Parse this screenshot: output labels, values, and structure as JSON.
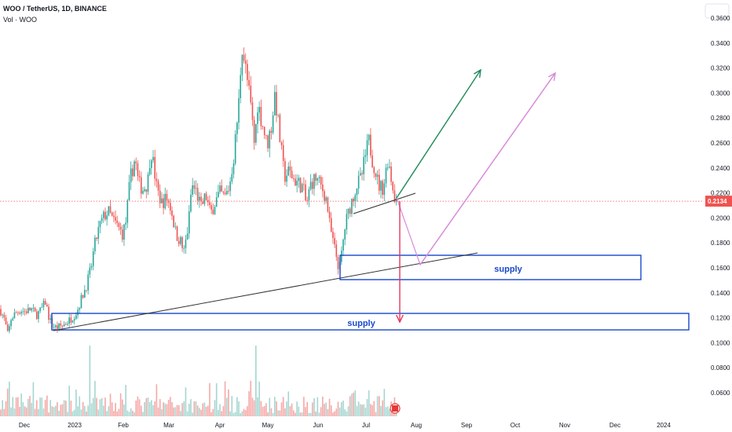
{
  "header": {
    "title": "WOO / TetherUS, 1D, BINANCE",
    "volume_label": "Vol · WOO"
  },
  "colors": {
    "up": "#26a69a",
    "down": "#ef5350",
    "vol_up": "#a5d6d0",
    "vol_down": "#f5a8a6",
    "price_line": "#ef5350",
    "box": "#1848cc",
    "green_arrow": "#1e8a5a",
    "violet_arrow": "#d88ad8",
    "red_arrow": "#e8355a",
    "trendline": "#333333"
  },
  "price_badge": "0.2134",
  "zones": [
    {
      "label": "supply"
    },
    {
      "label": "supply"
    }
  ],
  "chart_data": {
    "type": "candlestick",
    "title": "WOO / TetherUS, 1D, BINANCE",
    "y_ticks": [
      "0.3600",
      "0.3400",
      "0.3200",
      "0.3000",
      "0.2800",
      "0.2600",
      "0.2400",
      "0.2200",
      "0.2000",
      "0.1800",
      "0.1600",
      "0.1400",
      "0.1200",
      "0.1000",
      "0.0800",
      "0.0600"
    ],
    "x_ticks": [
      "Dec",
      "2023",
      "Feb",
      "Mar",
      "Apr",
      "May",
      "Jun",
      "Jul",
      "Aug",
      "Sep",
      "Oct",
      "Nov",
      "Dec",
      "2024"
    ],
    "ylim": [
      0.0465,
      0.3645
    ],
    "last_price": 0.2134,
    "price_path": [
      [
        0,
        0.127
      ],
      [
        6,
        0.118
      ],
      [
        10,
        0.106
      ],
      [
        14,
        0.119
      ],
      [
        20,
        0.124
      ],
      [
        26,
        0.126
      ],
      [
        32,
        0.125
      ],
      [
        40,
        0.127
      ],
      [
        46,
        0.122
      ],
      [
        52,
        0.126
      ],
      [
        58,
        0.133
      ],
      [
        62,
        0.121
      ],
      [
        66,
        0.114
      ],
      [
        72,
        0.112
      ],
      [
        80,
        0.114
      ],
      [
        90,
        0.119
      ],
      [
        98,
        0.125
      ],
      [
        104,
        0.136
      ],
      [
        110,
        0.146
      ],
      [
        116,
        0.16
      ],
      [
        120,
        0.177
      ],
      [
        126,
        0.192
      ],
      [
        132,
        0.201
      ],
      [
        138,
        0.205
      ],
      [
        144,
        0.198
      ],
      [
        150,
        0.193
      ],
      [
        156,
        0.187
      ],
      [
        160,
        0.196
      ],
      [
        166,
        0.232
      ],
      [
        172,
        0.248
      ],
      [
        176,
        0.228
      ],
      [
        182,
        0.223
      ],
      [
        188,
        0.228
      ],
      [
        192,
        0.256
      ],
      [
        196,
        0.24
      ],
      [
        200,
        0.222
      ],
      [
        206,
        0.212
      ],
      [
        212,
        0.216
      ],
      [
        218,
        0.207
      ],
      [
        224,
        0.187
      ],
      [
        230,
        0.181
      ],
      [
        234,
        0.172
      ],
      [
        240,
        0.195
      ],
      [
        244,
        0.226
      ],
      [
        250,
        0.221
      ],
      [
        256,
        0.208
      ],
      [
        262,
        0.218
      ],
      [
        268,
        0.203
      ],
      [
        274,
        0.213
      ],
      [
        280,
        0.22
      ],
      [
        286,
        0.216
      ],
      [
        292,
        0.225
      ],
      [
        298,
        0.251
      ],
      [
        304,
        0.292
      ],
      [
        308,
        0.34
      ],
      [
        312,
        0.322
      ],
      [
        316,
        0.305
      ],
      [
        320,
        0.285
      ],
      [
        324,
        0.258
      ],
      [
        328,
        0.292
      ],
      [
        334,
        0.276
      ],
      [
        340,
        0.258
      ],
      [
        346,
        0.275
      ],
      [
        350,
        0.3
      ],
      [
        356,
        0.265
      ],
      [
        362,
        0.233
      ],
      [
        368,
        0.237
      ],
      [
        374,
        0.231
      ],
      [
        380,
        0.228
      ],
      [
        386,
        0.224
      ],
      [
        390,
        0.21
      ],
      [
        396,
        0.228
      ],
      [
        402,
        0.232
      ],
      [
        408,
        0.226
      ],
      [
        412,
        0.221
      ],
      [
        416,
        0.214
      ],
      [
        420,
        0.193
      ],
      [
        424,
        0.181
      ],
      [
        428,
        0.17
      ],
      [
        432,
        0.158
      ],
      [
        436,
        0.177
      ],
      [
        440,
        0.196
      ],
      [
        444,
        0.205
      ],
      [
        448,
        0.214
      ],
      [
        454,
        0.226
      ],
      [
        460,
        0.232
      ],
      [
        466,
        0.252
      ],
      [
        470,
        0.262
      ],
      [
        474,
        0.247
      ],
      [
        478,
        0.238
      ],
      [
        482,
        0.226
      ],
      [
        488,
        0.224
      ],
      [
        494,
        0.248
      ],
      [
        498,
        0.232
      ],
      [
        502,
        0.218
      ],
      [
        506,
        0.213
      ]
    ]
  }
}
